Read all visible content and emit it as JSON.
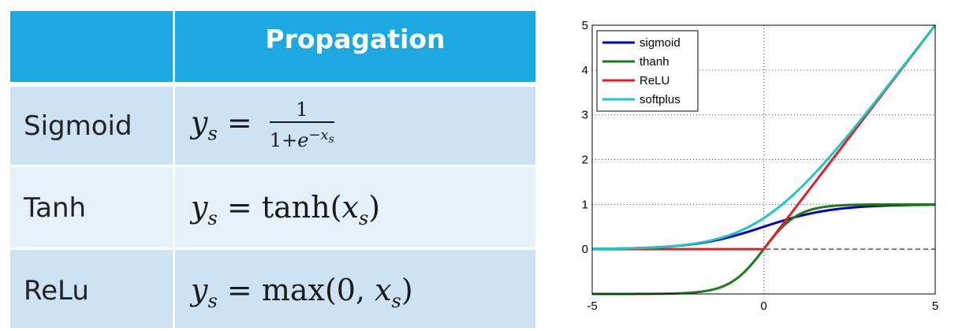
{
  "table": {
    "header": "Propagation",
    "rows": [
      {
        "name": "Sigmoid",
        "formula": "y_s = 1/(1+e^{-x_s})"
      },
      {
        "name": "Tanh",
        "formula": "y_s = tanh(x_s)"
      },
      {
        "name": "ReLu",
        "formula": "y_s = max(0, x_s)"
      }
    ],
    "colors": {
      "header_bg": "#1ea8e2",
      "row_dark": "#cde2f3",
      "row_light": "#e6f0f9"
    }
  },
  "formulas": {
    "ys": "y",
    "s": "s",
    "eq": "=",
    "one": "1",
    "one_plus": "1+",
    "e": "e",
    "neg_x": "−x",
    "tanh": "tanh(",
    "x": "x",
    "close": ")",
    "max": "max(0, "
  },
  "chart_data": {
    "type": "line",
    "title": "",
    "xlabel": "",
    "ylabel": "",
    "xlim": [
      -5,
      5
    ],
    "ylim": [
      -1,
      5
    ],
    "xticks": [
      "-5",
      "0",
      "5"
    ],
    "yticks": [
      "0",
      "1",
      "2",
      "3",
      "4",
      "5"
    ],
    "grid": true,
    "zero_line": "dashed",
    "legend_position": "top-left",
    "series": [
      {
        "name": "sigmoid",
        "color": "#0000cc",
        "function": "1/(1+exp(-x))"
      },
      {
        "name": "thanh",
        "color": "#1a7a1a",
        "function": "tanh(x)"
      },
      {
        "name": "ReLU",
        "color": "#e02020",
        "function": "max(0,x)"
      },
      {
        "name": "softplus",
        "color": "#22c4c4",
        "function": "log(1+exp(x))"
      }
    ]
  }
}
